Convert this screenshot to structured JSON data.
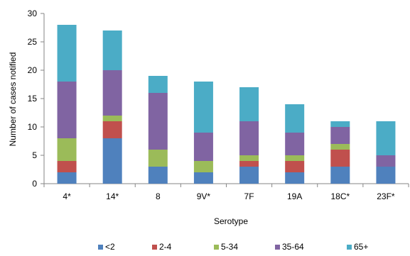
{
  "chart_data": {
    "type": "bar",
    "stacked": true,
    "title": "",
    "xlabel": "Serotype",
    "ylabel": "Number of cases notified",
    "ylim": [
      0,
      30
    ],
    "yticks": [
      0,
      5,
      10,
      15,
      20,
      25,
      30
    ],
    "grid": false,
    "legend_position": "bottom",
    "categories": [
      "4*",
      "14*",
      "8",
      "9V*",
      "7F",
      "19A",
      "18C*",
      "23F*"
    ],
    "series": [
      {
        "name": "<2",
        "color": "#4F81BD",
        "values": [
          2,
          8,
          3,
          2,
          3,
          2,
          3,
          3
        ]
      },
      {
        "name": "2-4",
        "color": "#C0504D",
        "values": [
          2,
          3,
          0,
          0,
          1,
          2,
          3,
          0
        ]
      },
      {
        "name": "5-34",
        "color": "#9BBB59",
        "values": [
          4,
          1,
          3,
          2,
          1,
          1,
          1,
          0
        ]
      },
      {
        "name": "35-64",
        "color": "#8064A2",
        "values": [
          10,
          8,
          10,
          5,
          6,
          4,
          3,
          2
        ]
      },
      {
        "name": "65+",
        "color": "#4BACC6",
        "values": [
          10,
          7,
          3,
          9,
          6,
          5,
          1,
          6
        ]
      }
    ]
  }
}
